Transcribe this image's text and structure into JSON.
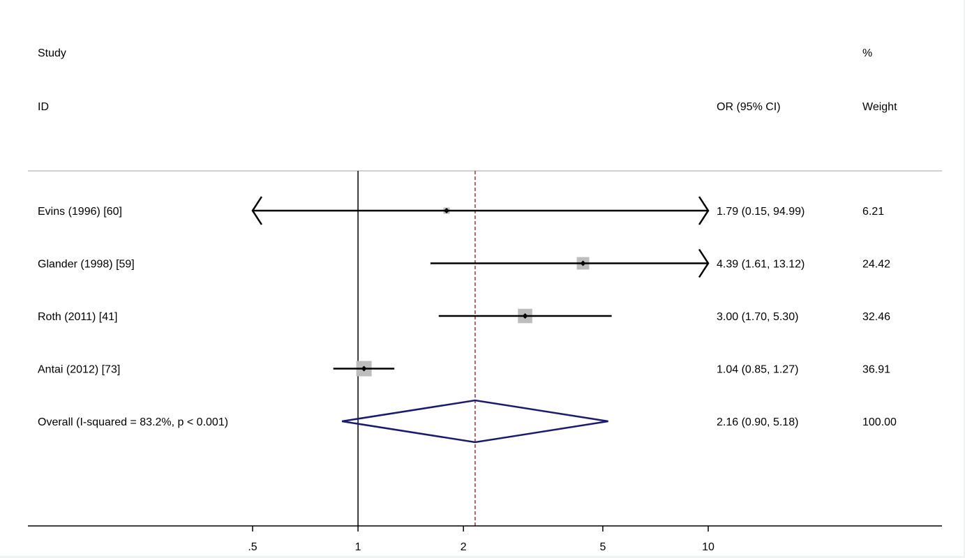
{
  "headers": {
    "study_line1": "Study",
    "study_line2": "ID",
    "effect_label": "OR (95% CI)",
    "weight_line1": "%",
    "weight_line2": "Weight"
  },
  "chart_data": {
    "type": "forest",
    "x_scale": "log",
    "xlim": [
      0.5,
      10
    ],
    "xticks": [
      ".5",
      "1",
      "2",
      "5",
      "10"
    ],
    "null_line": 1,
    "overall_line": 2.16,
    "grid": false,
    "colors": {
      "box": "#bdbdbd",
      "ci_line": "#000000",
      "diamond": "#1a1a6e",
      "overall_line": "#8b3a3a"
    },
    "studies": [
      {
        "label": "Evins (1996) [60]",
        "or": 1.79,
        "lower": 0.15,
        "upper": 94.99,
        "ci_text": "1.79 (0.15, 94.99)",
        "weight": 6.21,
        "weight_text": "6.21",
        "clip_left": true,
        "clip_right": true
      },
      {
        "label": "Glander (1998) [59]",
        "or": 4.39,
        "lower": 1.61,
        "upper": 13.12,
        "ci_text": "4.39 (1.61, 13.12)",
        "weight": 24.42,
        "weight_text": "24.42",
        "clip_left": false,
        "clip_right": true
      },
      {
        "label": "Roth (2011) [41]",
        "or": 3.0,
        "lower": 1.7,
        "upper": 5.3,
        "ci_text": "3.00 (1.70, 5.30)",
        "weight": 32.46,
        "weight_text": "32.46",
        "clip_left": false,
        "clip_right": false
      },
      {
        "label": "Antai (2012) [73]",
        "or": 1.04,
        "lower": 0.85,
        "upper": 1.27,
        "ci_text": "1.04 (0.85, 1.27)",
        "weight": 36.91,
        "weight_text": "36.91",
        "clip_left": false,
        "clip_right": false
      }
    ],
    "overall": {
      "label": "Overall  (I-squared = 83.2%, p < 0.001)",
      "or": 2.16,
      "lower": 0.9,
      "upper": 5.18,
      "ci_text": "2.16 (0.90, 5.18)",
      "weight_text": "100.00"
    }
  }
}
